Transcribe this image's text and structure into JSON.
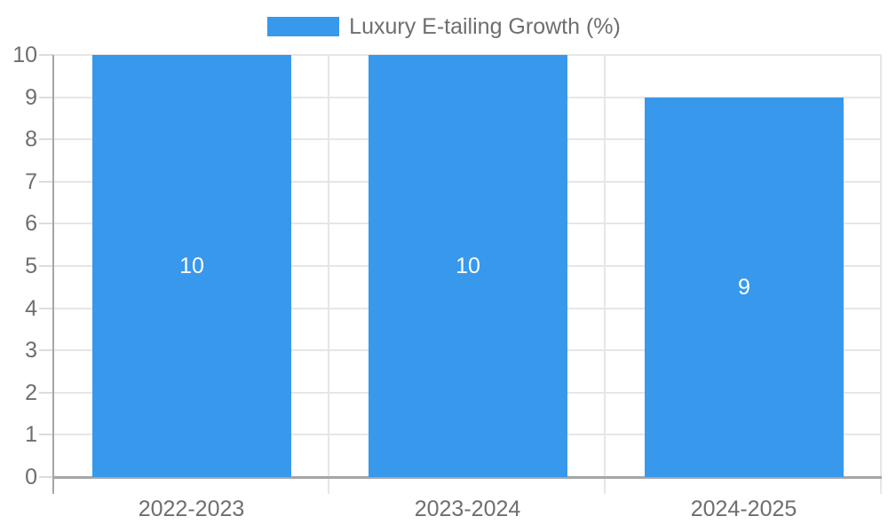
{
  "chart_data": {
    "type": "bar",
    "title": "Luxury E-tailing Growth (%)",
    "categories": [
      "2022-2023",
      "2023-2024",
      "2024-2025"
    ],
    "series": [
      {
        "name": "Luxury E-tailing Growth (%)",
        "values": [
          10,
          10,
          9
        ]
      }
    ],
    "value_labels": [
      "10",
      "10",
      "9"
    ],
    "xlabel": "",
    "ylabel": "",
    "ylim": [
      0,
      10
    ],
    "yticks": [
      0,
      1,
      2,
      3,
      4,
      5,
      6,
      7,
      8,
      9,
      10
    ],
    "grid": true,
    "legend_position": "top-center",
    "colors": {
      "bar": "#3898ec",
      "grid": "#e6e6e6",
      "axis": "#a6a6a6",
      "tick": "#dcdcdc",
      "label": "#6e6e6e",
      "value_label": "#ffffff",
      "background": "#ffffff"
    }
  }
}
